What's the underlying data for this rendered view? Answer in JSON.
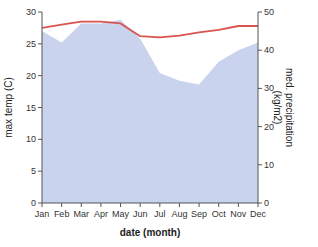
{
  "chart_data": {
    "type": "line",
    "xlabel": "date (month)",
    "ylabel": "max temp (C)",
    "y2label": "med. precipitation\n(kg/m2)",
    "categories": [
      "Jan",
      "Feb",
      "Mar",
      "Apr",
      "May",
      "Jun",
      "Jul",
      "Aug",
      "Sep",
      "Oct",
      "Nov",
      "Dec"
    ],
    "series": [
      {
        "type": "line",
        "color": "#d9534f",
        "values": [
          27.5,
          28.0,
          28.5,
          28.5,
          28.2,
          26.2,
          26.0,
          26.3,
          26.8,
          27.2,
          27.8,
          27.8
        ]
      },
      {
        "type": "area",
        "axis": "y2",
        "color": "#b8c4e8",
        "values": [
          45,
          42,
          47,
          47,
          48,
          43,
          34,
          32,
          31,
          37,
          40,
          42
        ]
      }
    ],
    "ylim": [
      0,
      30
    ],
    "yticks": [
      0,
      5,
      10,
      15,
      20,
      25,
      30
    ],
    "y2lim": [
      0,
      50
    ],
    "y2ticks": [
      0,
      10,
      20,
      30,
      40,
      50
    ],
    "grid": false
  }
}
